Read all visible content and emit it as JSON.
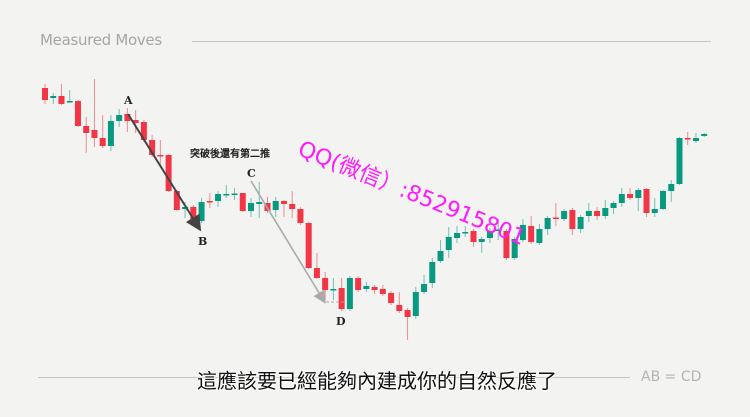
{
  "header": {
    "title": "Measured Moves"
  },
  "footer": {
    "subtitle": "這應該要已經能夠內建成你的自然反應了",
    "label": "AB = CD"
  },
  "watermark": "QQ(微信）:852915801",
  "colors": {
    "up": "#089981",
    "down": "#f23645",
    "background": "#f3f3f1",
    "watermark": "#ff1aff"
  },
  "chart_data": {
    "type": "candlestick",
    "title": "Measured Moves",
    "axes_visible": false,
    "grid": false,
    "ohlc_format": [
      "open",
      "high",
      "low",
      "close"
    ],
    "candles": [
      [
        312,
        316,
        296,
        300
      ],
      [
        302,
        307,
        296,
        304
      ],
      [
        304,
        316,
        295,
        296
      ],
      [
        298,
        310,
        297,
        299
      ],
      [
        299,
        300,
        273,
        274
      ],
      [
        274,
        283,
        247,
        267
      ],
      [
        270,
        321,
        253,
        262
      ],
      [
        262,
        285,
        252,
        254
      ],
      [
        254,
        285,
        249,
        279
      ],
      [
        279,
        291,
        273,
        285
      ],
      [
        286,
        292,
        268,
        279
      ],
      [
        280,
        290,
        267,
        277
      ],
      [
        278,
        280,
        258,
        260
      ],
      [
        260,
        265,
        243,
        245
      ],
      [
        245,
        260,
        235,
        244
      ],
      [
        245,
        246,
        208,
        209
      ],
      [
        209,
        210,
        189,
        190
      ],
      [
        191,
        198,
        182,
        193
      ],
      [
        193,
        195,
        174,
        179
      ],
      [
        179,
        202,
        177,
        198
      ],
      [
        199,
        207,
        192,
        198
      ],
      [
        199,
        209,
        193,
        206
      ],
      [
        205.5,
        215,
        202,
        206
      ],
      [
        206,
        212,
        200,
        206.5
      ],
      [
        207,
        207,
        188,
        189
      ],
      [
        189,
        202,
        183,
        197
      ],
      [
        196,
        218,
        182,
        198
      ],
      [
        197,
        203,
        187,
        189
      ],
      [
        190,
        203,
        183,
        199
      ],
      [
        199,
        200,
        183,
        196
      ],
      [
        196,
        209,
        182,
        191
      ],
      [
        191,
        193,
        175,
        177
      ],
      [
        177,
        178,
        131,
        132
      ],
      [
        132,
        147,
        121,
        122
      ],
      [
        122,
        128,
        100,
        110
      ],
      [
        110.5,
        122,
        100,
        111
      ],
      [
        112,
        122,
        89,
        91
      ],
      [
        91,
        124,
        89,
        122
      ],
      [
        122,
        124,
        108,
        110
      ],
      [
        111,
        118,
        108,
        114
      ],
      [
        113,
        115,
        106,
        110
      ],
      [
        111,
        115,
        104,
        106
      ],
      [
        107,
        109,
        95,
        97
      ],
      [
        95,
        108,
        87,
        89
      ],
      [
        90,
        92,
        60,
        83
      ],
      [
        84,
        113,
        81,
        108
      ],
      [
        108,
        125,
        106,
        116
      ],
      [
        117,
        142,
        112,
        138
      ],
      [
        139,
        160,
        137,
        149
      ],
      [
        150,
        173,
        142,
        163
      ],
      [
        162,
        174,
        157,
        167
      ],
      [
        167.5,
        174,
        163,
        168
      ],
      [
        169,
        171,
        153,
        158
      ],
      [
        158,
        163,
        147,
        161
      ],
      [
        162,
        172,
        157,
        169
      ],
      [
        170,
        181,
        160,
        170.5
      ],
      [
        169,
        171,
        140,
        142
      ],
      [
        142,
        163,
        140,
        161
      ],
      [
        160,
        181,
        158,
        175
      ],
      [
        174,
        184,
        156,
        158
      ],
      [
        157,
        176,
        155,
        171
      ],
      [
        171,
        184,
        165,
        182
      ],
      [
        182.5,
        197,
        174,
        182
      ],
      [
        181,
        191,
        179,
        189
      ],
      [
        190,
        192,
        165,
        171
      ],
      [
        171,
        185,
        167,
        183
      ],
      [
        184,
        197,
        178,
        189
      ],
      [
        189,
        193,
        180,
        184
      ],
      [
        184,
        200,
        181,
        192
      ],
      [
        192,
        199,
        186,
        197
      ],
      [
        197,
        212,
        193,
        206
      ],
      [
        206,
        212,
        200,
        202
      ],
      [
        202,
        212,
        189,
        210
      ],
      [
        211,
        212,
        183,
        187
      ],
      [
        187,
        202,
        183,
        191
      ],
      [
        191,
        210,
        190,
        209
      ],
      [
        209,
        220,
        198,
        216
      ],
      [
        216,
        263,
        215,
        262
      ],
      [
        262,
        268,
        255,
        261
      ],
      [
        259,
        267,
        257,
        262
      ],
      [
        264,
        267,
        263,
        266
      ]
    ],
    "annotations": [
      {
        "label": "A",
        "candle": 10
      },
      {
        "label": "B",
        "candle": 19
      },
      {
        "label": "C",
        "candle": 25
      },
      {
        "label": "D",
        "candle": 36
      },
      {
        "text": "突破後還有第二推"
      }
    ],
    "arrows": [
      {
        "from": "A",
        "to": "B",
        "color": "#444444"
      },
      {
        "from": "C",
        "to": "D",
        "color": "#aaaaaa"
      }
    ]
  }
}
